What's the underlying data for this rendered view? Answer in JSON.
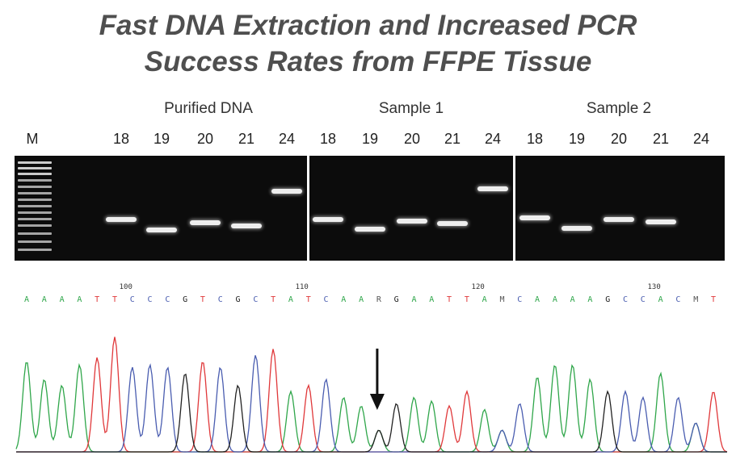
{
  "title_line1": "Fast DNA Extraction and Increased PCR",
  "title_line2": "Success Rates from FFPE Tissue",
  "marker_label": "M",
  "groups": [
    {
      "label": "Purified DNA",
      "lanes": [
        "18",
        "19",
        "20",
        "21",
        "24"
      ]
    },
    {
      "label": "Sample 1",
      "lanes": [
        "18",
        "19",
        "20",
        "21",
        "24"
      ]
    },
    {
      "label": "Sample 2",
      "lanes": [
        "18",
        "19",
        "20",
        "21",
        "24"
      ]
    }
  ],
  "sequence": [
    "A",
    "A",
    "A",
    "A",
    "T",
    "T",
    "C",
    "C",
    "C",
    "G",
    "T",
    "C",
    "G",
    "C",
    "T",
    "A",
    "T",
    "C",
    "A",
    "A",
    "R",
    "G",
    "A",
    "A",
    "T",
    "T",
    "A",
    "M",
    "C",
    "A",
    "A",
    "A",
    "A",
    "G",
    "C",
    "C",
    "A",
    "C",
    "M",
    "T"
  ],
  "position_labels": [
    "100",
    "110",
    "120",
    "130"
  ],
  "base_colors": {
    "A": "#2fa64a",
    "T": "#e0383a",
    "C": "#4a5db0",
    "G": "#222222",
    "R": "#555555",
    "M": "#555555"
  },
  "arrow": "down-arrow"
}
